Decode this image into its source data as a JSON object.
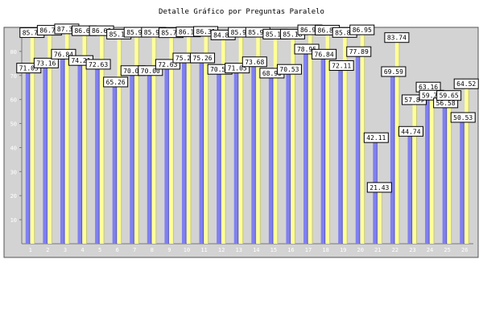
{
  "chart_data": {
    "type": "bar",
    "title": "Detalle Gráfico por Preguntas Paralelo",
    "xlabel": "",
    "ylabel": "",
    "ylim": [
      0,
      90
    ],
    "yticks": [
      10,
      20,
      30,
      40,
      50,
      60,
      70,
      80
    ],
    "grid": false,
    "categories": [
      "1",
      "2",
      "3",
      "4",
      "5",
      "6",
      "7",
      "8",
      "9",
      "10",
      "11",
      "12",
      "13",
      "14",
      "15",
      "16",
      "17",
      "18",
      "19",
      "20",
      "21",
      "22",
      "23",
      "24",
      "25",
      "26"
    ],
    "series": [
      {
        "color": "#8080f0",
        "values": [
          71.05,
          73.16,
          76.84,
          74.21,
          72.63,
          65.26,
          70.0,
          70.0,
          72.63,
          75.26,
          75.26,
          70.53,
          71.05,
          73.68,
          68.95,
          70.53,
          78.95,
          76.84,
          72.11,
          77.89,
          42.11,
          69.59,
          44.74,
          63.16,
          56.58,
          50.53
        ],
        "labels": [
          "71.05",
          "73.16",
          "76.84",
          "74.21",
          "72.63",
          "65.26",
          "70.00",
          "70.00",
          "72.63",
          "75.26",
          "75.26",
          "70.53",
          "71.05",
          "73.68",
          "68.95",
          "70.53",
          "78.95",
          "76.84",
          "72.11",
          "77.89",
          "42.11",
          "69.59",
          "44.74",
          "63.16",
          "56.58",
          "50.53"
        ]
      },
      {
        "color": "#ffff99",
        "values": [
          85.79,
          86.78,
          87.36,
          86.6,
          86.6,
          85.18,
          85.97,
          85.97,
          85.76,
          86.11,
          86.31,
          84.84,
          85.97,
          85.97,
          85.18,
          85.18,
          86.96,
          86.84,
          85.88,
          86.95,
          21.43,
          83.74,
          57.89,
          59.79,
          59.65,
          64.52
        ],
        "labels": [
          "85.79",
          "86.78",
          "87.36",
          "86.60",
          "86.60",
          "85.18",
          "85.97",
          "85.97",
          "85.76",
          "86.11",
          "86.31",
          "84.84",
          "85.97",
          "85.97",
          "85.18",
          "85.18",
          "86.96",
          "86.84",
          "85.88",
          "86.95",
          "21.43",
          "83.74",
          "57.89",
          "59.79",
          "59.65",
          "64.52"
        ]
      }
    ]
  }
}
